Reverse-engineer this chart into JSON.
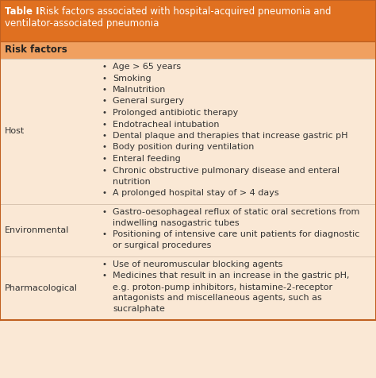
{
  "title_bold": "Table I:",
  "title_rest": " Risk factors associated with hospital-acquired pneumonia and ventilator-associated pneumonia",
  "header": "Risk factors",
  "title_bg": "#E07020",
  "header_bg": "#F0A060",
  "body_bg": "#FAE8D5",
  "title_text_color": "#FFFFFF",
  "header_text_color": "#222222",
  "body_text_color": "#333333",
  "rows": [
    {
      "category": "Host",
      "items": [
        "Age > 65 years",
        "Smoking",
        "Malnutrition",
        "General surgery",
        "Prolonged antibiotic therapy",
        "Endotracheal intubation",
        "Dental plaque and therapies that increase gastric pH",
        "Body position during ventilation",
        "Enteral feeding",
        "Chronic obstructive pulmonary disease and enteral\nnutrition",
        "A prolonged hospital stay of > 4 days"
      ]
    },
    {
      "category": "Environmental",
      "items": [
        "Gastro-oesophageal reflux of static oral secretions from\nindwelling nasogastric tubes",
        "Positioning of intensive care unit patients for diagnostic\nor surgical procedures"
      ]
    },
    {
      "category": "Pharmacological",
      "items": [
        "Use of neuromuscular blocking agents",
        "Medicines that result in an increase in the gastric pH,\ne.g. proton-pump inhibitors, histamine-2-receptor\nantagonists and miscellaneous agents, such as\nsucralphate"
      ]
    }
  ],
  "figw": 4.74,
  "figh": 4.76,
  "dpi": 100
}
